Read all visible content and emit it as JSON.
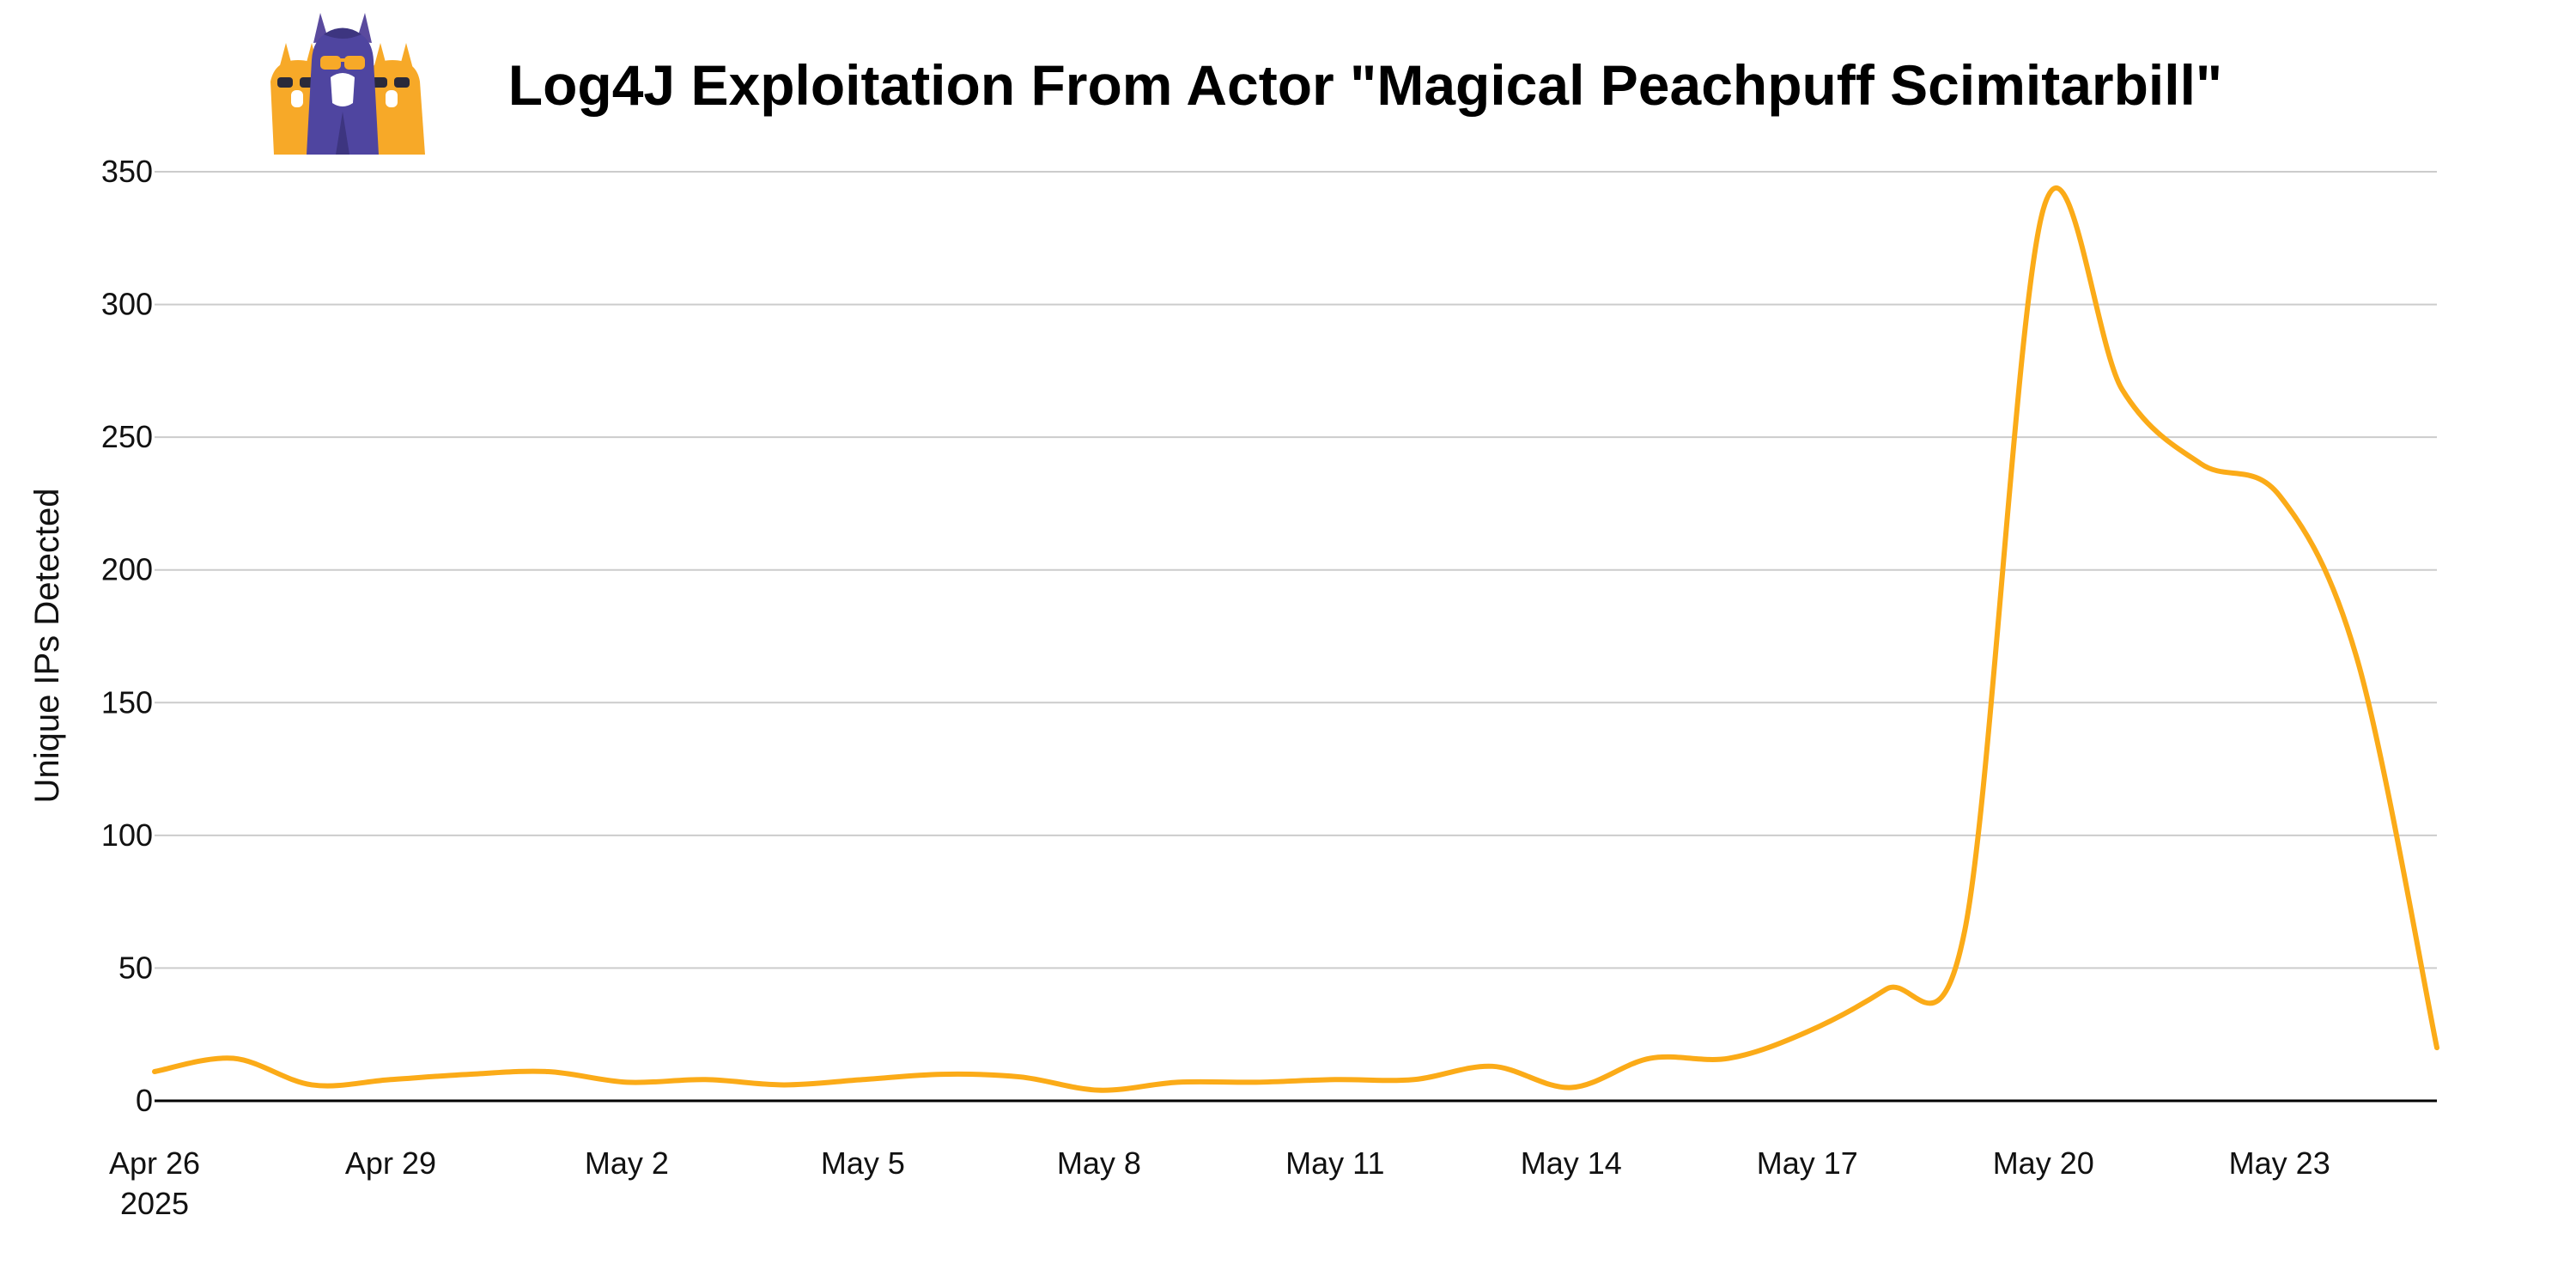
{
  "chart_data": {
    "type": "line",
    "title": "Log4J Exploitation From Actor \"Magical Peachpuff Scimitarbill\"",
    "xlabel": "",
    "ylabel": "Unique IPs Detected",
    "ylim": [
      0,
      350
    ],
    "yticks": [
      0,
      50,
      100,
      150,
      200,
      250,
      300,
      350
    ],
    "grid": true,
    "legend": "none",
    "line_color": "#fbab18",
    "x_ticks": [
      {
        "date": "2025-04-26",
        "label": "Apr 26",
        "sublabel": "2025"
      },
      {
        "date": "2025-04-29",
        "label": "Apr 29"
      },
      {
        "date": "2025-05-02",
        "label": "May 2"
      },
      {
        "date": "2025-05-05",
        "label": "May 5"
      },
      {
        "date": "2025-05-08",
        "label": "May 8"
      },
      {
        "date": "2025-05-11",
        "label": "May 11"
      },
      {
        "date": "2025-05-14",
        "label": "May 14"
      },
      {
        "date": "2025-05-17",
        "label": "May 17"
      },
      {
        "date": "2025-05-20",
        "label": "May 20"
      },
      {
        "date": "2025-05-23",
        "label": "May 23"
      }
    ],
    "x": [
      "2025-04-26",
      "2025-04-27",
      "2025-04-28",
      "2025-04-29",
      "2025-04-30",
      "2025-05-01",
      "2025-05-02",
      "2025-05-03",
      "2025-05-04",
      "2025-05-05",
      "2025-05-06",
      "2025-05-07",
      "2025-05-08",
      "2025-05-09",
      "2025-05-10",
      "2025-05-11",
      "2025-05-12",
      "2025-05-13",
      "2025-05-14",
      "2025-05-15",
      "2025-05-16",
      "2025-05-17",
      "2025-05-18",
      "2025-05-19",
      "2025-05-20",
      "2025-05-21",
      "2025-05-22",
      "2025-05-23",
      "2025-05-24",
      "2025-05-25"
    ],
    "series": [
      {
        "values": [
          11,
          16,
          6,
          8,
          10,
          11,
          7,
          8,
          6,
          8,
          10,
          9,
          4,
          7,
          7,
          8,
          8,
          13,
          5,
          16,
          16,
          26,
          42,
          64,
          336,
          268,
          240,
          228,
          165,
          20
        ]
      }
    ]
  },
  "logo": {
    "name": "llama-mascot-logo"
  }
}
